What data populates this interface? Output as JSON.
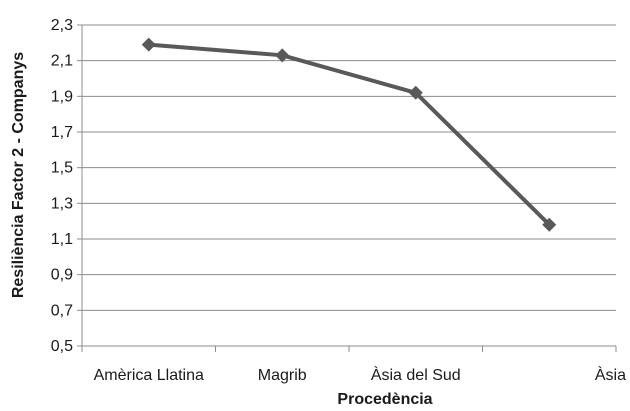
{
  "chart_data": {
    "type": "line",
    "categories": [
      "Amèrica Llatina",
      "Magrib",
      "Àsia del Sud",
      "Àsia"
    ],
    "series": [
      {
        "values": [
          2.19,
          2.13,
          1.92,
          1.18
        ]
      }
    ],
    "xlabel": "Procedència",
    "ylabel": "Resiliència Factor 2 - Companys",
    "ylim": [
      0.5,
      2.3
    ],
    "yticks": [
      "0,5",
      "0,7",
      "0,9",
      "1,1",
      "1,3",
      "1,5",
      "1,7",
      "1,9",
      "2,1",
      "2,3"
    ],
    "grid": true,
    "legend": "none",
    "colors": {
      "line": "#595959",
      "grid": "#8c8c8c",
      "axis": "#8c8c8c"
    }
  }
}
